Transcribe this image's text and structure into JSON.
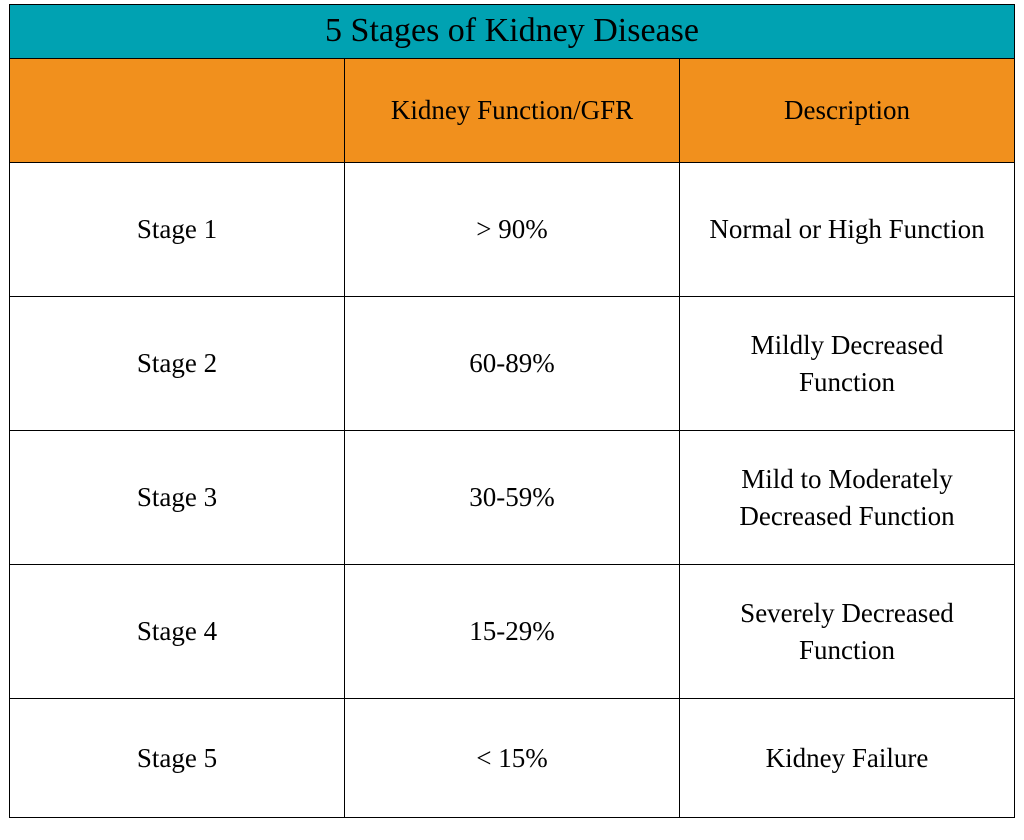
{
  "table": {
    "title": "5 Stages of Kidney Disease",
    "title_bg_color": "#00a2b2",
    "header_bg_color": "#f1901d",
    "body_bg_color": "#ffffff",
    "border_color": "#000000",
    "text_color": "#000000",
    "title_fontsize": 34,
    "cell_fontsize": 27,
    "columns": [
      "",
      "Kidney Function/GFR",
      "Description"
    ],
    "rows": [
      {
        "stage": "Stage 1",
        "gfr": "> 90%",
        "description": "Normal or High Function"
      },
      {
        "stage": "Stage 2",
        "gfr": "60-89%",
        "description": "Mildly Decreased Function"
      },
      {
        "stage": "Stage 3",
        "gfr": "30-59%",
        "description": "Mild to Moderately Decreased Function"
      },
      {
        "stage": "Stage 4",
        "gfr": "15-29%",
        "description": "Severely Decreased Function"
      },
      {
        "stage": "Stage 5",
        "gfr": "< 15%",
        "description": "Kidney Failure"
      }
    ]
  }
}
